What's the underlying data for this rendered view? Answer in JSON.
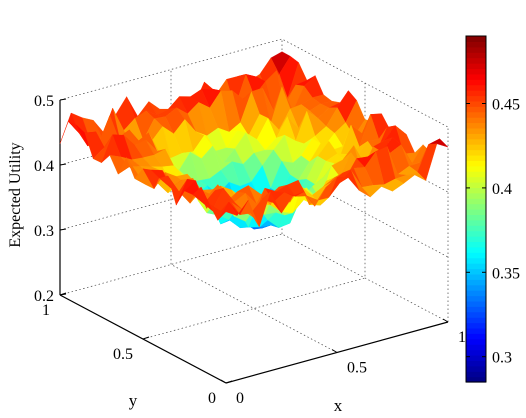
{
  "chart_data": {
    "type": "surface",
    "title": "",
    "xlabel": "x",
    "ylabel": "y",
    "zlabel": "Expected Utility",
    "xlim": [
      0,
      1
    ],
    "ylim": [
      0,
      1
    ],
    "zlim": [
      0.2,
      0.5
    ],
    "x_ticks": [
      "0",
      "0.5",
      "1"
    ],
    "y_ticks": [
      "0",
      "0.5",
      "1"
    ],
    "z_ticks": [
      "0.2",
      "0.3",
      "0.4",
      "0.5"
    ],
    "colorbar": {
      "range": [
        0.285,
        0.49
      ],
      "ticks": [
        "0.3",
        "0.35",
        "0.4",
        "0.45"
      ],
      "colormap": "jet"
    },
    "grid": true,
    "surface": {
      "grid_points": 21,
      "shape": "noisy bowl: ~0.455 near edges, dipping to ~0.33 at center (0.5,0.5)",
      "edge_value": 0.455,
      "center_value": 0.33,
      "noise_amplitude": 0.02
    }
  }
}
